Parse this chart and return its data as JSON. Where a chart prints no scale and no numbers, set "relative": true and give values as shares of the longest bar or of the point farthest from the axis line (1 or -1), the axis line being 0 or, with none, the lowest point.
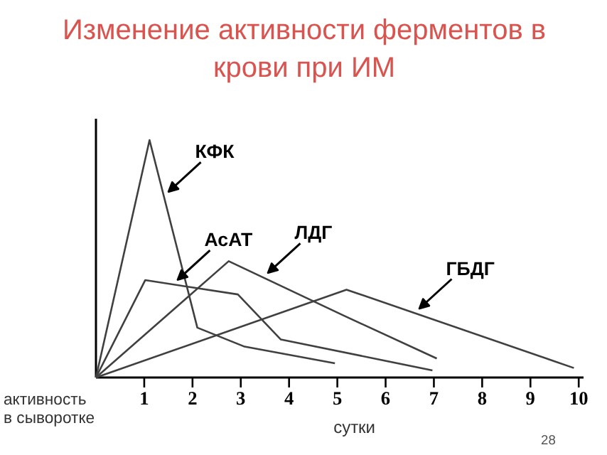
{
  "chart_data": {
    "type": "line",
    "title": "Изменение активности ферментов в крови при ИМ",
    "xlabel": "сутки",
    "ylabel": "активность в сыворотке",
    "relative": true,
    "xlim": [
      0,
      10.1
    ],
    "xticks": [
      1,
      2,
      3,
      4,
      5,
      6,
      7,
      8,
      9,
      10
    ],
    "grid": false,
    "marker": "none",
    "line_style": "solid",
    "annotations": [
      "28"
    ],
    "series": [
      {
        "name": "КФК",
        "color": "#404040",
        "x": [
          0,
          1.11,
          2.1,
          3.08,
          4.95
        ],
        "values": [
          0,
          1.0,
          0.21,
          0.13,
          0.06
        ]
      },
      {
        "name": "АсАТ",
        "color": "#404040",
        "x": [
          0,
          1.02,
          2.94,
          3.83,
          6.97
        ],
        "values": [
          0,
          0.41,
          0.35,
          0.16,
          0.03
        ]
      },
      {
        "name": "ЛДГ",
        "color": "#404040",
        "x": [
          0,
          2.75,
          5.14,
          7.06
        ],
        "values": [
          0,
          0.49,
          0.26,
          0.08
        ]
      },
      {
        "name": "ГБДГ",
        "color": "#404040",
        "x": [
          0,
          5.19,
          9.9
        ],
        "values": [
          0,
          0.37,
          0.04
        ]
      }
    ]
  }
}
